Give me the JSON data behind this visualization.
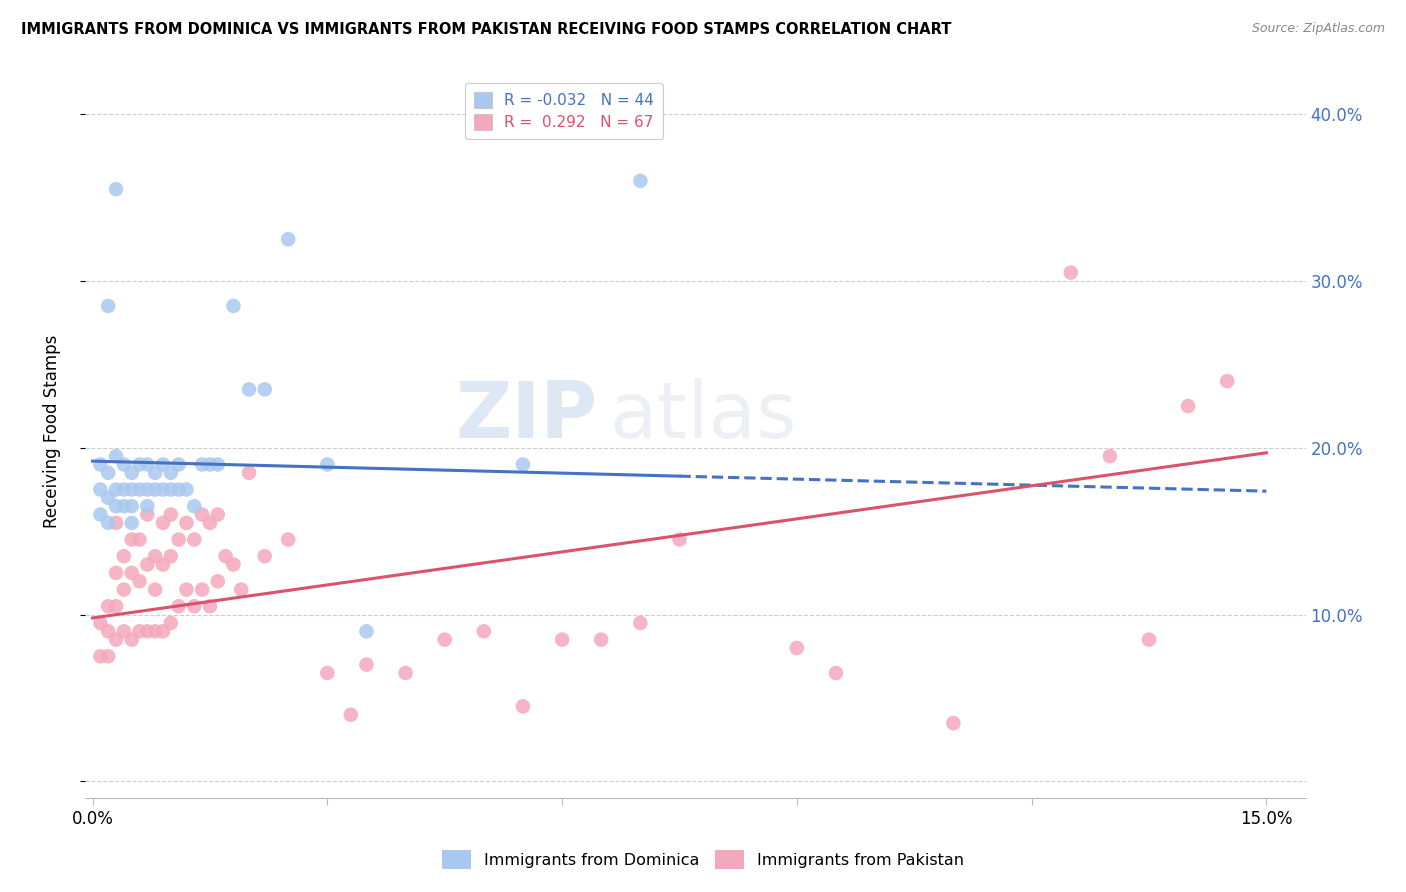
{
  "title": "IMMIGRANTS FROM DOMINICA VS IMMIGRANTS FROM PAKISTAN RECEIVING FOOD STAMPS CORRELATION CHART",
  "source": "Source: ZipAtlas.com",
  "ylabel": "Receiving Food Stamps",
  "y_ticks": [
    0.0,
    0.1,
    0.2,
    0.3,
    0.4
  ],
  "y_tick_labels": [
    "",
    "10.0%",
    "20.0%",
    "30.0%",
    "40.0%"
  ],
  "x_ticks": [
    0.0,
    0.03,
    0.06,
    0.09,
    0.12,
    0.15
  ],
  "x_tick_labels": [
    "0.0%",
    "",
    "",
    "",
    "",
    "15.0%"
  ],
  "xlim": [
    -0.001,
    0.155
  ],
  "ylim": [
    -0.01,
    0.43
  ],
  "color_dominica": "#A8C8EE",
  "color_pakistan": "#F4A8BC",
  "color_line_dominica": "#4472C4",
  "color_line_pakistan": "#D9536A",
  "color_right_axis": "#4472C4",
  "watermark_zip": "ZIP",
  "watermark_atlas": "atlas",
  "blue_line_x": [
    0.0,
    0.075,
    0.15
  ],
  "blue_line_y": [
    0.192,
    0.183,
    0.174
  ],
  "pink_line_x": [
    0.0,
    0.15
  ],
  "pink_line_y": [
    0.098,
    0.197
  ],
  "dominica_x": [
    0.001,
    0.001,
    0.001,
    0.002,
    0.002,
    0.002,
    0.003,
    0.003,
    0.003,
    0.004,
    0.004,
    0.004,
    0.005,
    0.005,
    0.005,
    0.005,
    0.006,
    0.006,
    0.007,
    0.007,
    0.007,
    0.008,
    0.008,
    0.009,
    0.009,
    0.01,
    0.01,
    0.011,
    0.011,
    0.012,
    0.013,
    0.014,
    0.015,
    0.016,
    0.018,
    0.02,
    0.022,
    0.025,
    0.03,
    0.035,
    0.055,
    0.07,
    0.002,
    0.003
  ],
  "dominica_y": [
    0.19,
    0.175,
    0.16,
    0.185,
    0.17,
    0.155,
    0.195,
    0.175,
    0.165,
    0.19,
    0.175,
    0.165,
    0.185,
    0.175,
    0.165,
    0.155,
    0.19,
    0.175,
    0.19,
    0.175,
    0.165,
    0.185,
    0.175,
    0.19,
    0.175,
    0.185,
    0.175,
    0.19,
    0.175,
    0.175,
    0.165,
    0.19,
    0.19,
    0.19,
    0.285,
    0.235,
    0.235,
    0.325,
    0.19,
    0.09,
    0.19,
    0.36,
    0.285,
    0.355
  ],
  "pakistan_x": [
    0.001,
    0.001,
    0.002,
    0.002,
    0.002,
    0.003,
    0.003,
    0.003,
    0.003,
    0.004,
    0.004,
    0.004,
    0.005,
    0.005,
    0.005,
    0.006,
    0.006,
    0.006,
    0.007,
    0.007,
    0.007,
    0.008,
    0.008,
    0.008,
    0.009,
    0.009,
    0.009,
    0.01,
    0.01,
    0.01,
    0.011,
    0.011,
    0.012,
    0.012,
    0.013,
    0.013,
    0.014,
    0.014,
    0.015,
    0.015,
    0.016,
    0.016,
    0.017,
    0.018,
    0.019,
    0.02,
    0.022,
    0.025,
    0.03,
    0.033,
    0.035,
    0.04,
    0.045,
    0.05,
    0.055,
    0.06,
    0.065,
    0.07,
    0.075,
    0.09,
    0.095,
    0.11,
    0.125,
    0.13,
    0.135,
    0.14,
    0.145
  ],
  "pakistan_y": [
    0.095,
    0.075,
    0.105,
    0.09,
    0.075,
    0.155,
    0.125,
    0.105,
    0.085,
    0.135,
    0.115,
    0.09,
    0.145,
    0.125,
    0.085,
    0.145,
    0.12,
    0.09,
    0.16,
    0.13,
    0.09,
    0.135,
    0.115,
    0.09,
    0.155,
    0.13,
    0.09,
    0.16,
    0.135,
    0.095,
    0.145,
    0.105,
    0.155,
    0.115,
    0.145,
    0.105,
    0.16,
    0.115,
    0.155,
    0.105,
    0.16,
    0.12,
    0.135,
    0.13,
    0.115,
    0.185,
    0.135,
    0.145,
    0.065,
    0.04,
    0.07,
    0.065,
    0.085,
    0.09,
    0.045,
    0.085,
    0.085,
    0.095,
    0.145,
    0.08,
    0.065,
    0.035,
    0.305,
    0.195,
    0.085,
    0.225,
    0.24
  ]
}
